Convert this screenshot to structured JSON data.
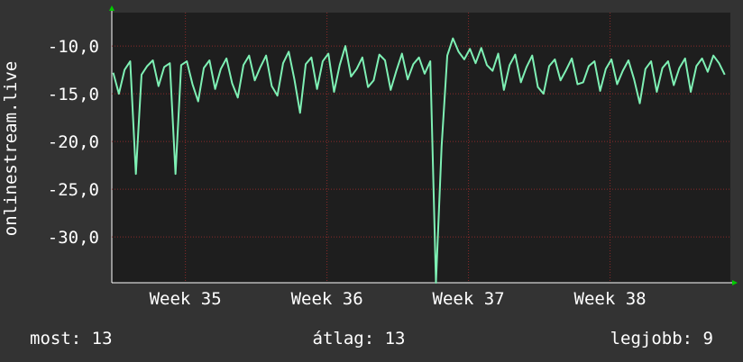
{
  "chart_data": {
    "type": "line",
    "y_label": "onlinestream.live",
    "x": [
      34.49,
      34.53,
      34.57,
      34.61,
      34.65,
      34.69,
      34.73,
      34.77,
      34.81,
      34.85,
      34.89,
      34.93,
      34.97,
      35.01,
      35.05,
      35.09,
      35.13,
      35.17,
      35.21,
      35.25,
      35.29,
      35.33,
      35.37,
      35.41,
      35.45,
      35.49,
      35.53,
      35.57,
      35.61,
      35.65,
      35.69,
      35.73,
      35.77,
      35.81,
      35.85,
      35.89,
      35.93,
      35.97,
      36.01,
      36.05,
      36.09,
      36.13,
      36.17,
      36.21,
      36.25,
      36.29,
      36.33,
      36.37,
      36.41,
      36.45,
      36.49,
      36.53,
      36.57,
      36.61,
      36.65,
      36.69,
      36.73,
      36.77,
      36.81,
      36.85,
      36.89,
      36.93,
      36.97,
      37.01,
      37.05,
      37.09,
      37.13,
      37.17,
      37.21,
      37.25,
      37.29,
      37.33,
      37.37,
      37.41,
      37.45,
      37.49,
      37.53,
      37.57,
      37.61,
      37.65,
      37.69,
      37.73,
      37.77,
      37.81,
      37.85,
      37.89,
      37.93,
      37.97,
      38.01,
      38.05,
      38.09,
      38.13,
      38.17,
      38.21,
      38.25,
      38.29,
      38.33,
      38.37,
      38.41,
      38.45,
      38.49,
      38.53,
      38.57,
      38.61,
      38.65,
      38.69,
      38.73,
      38.77,
      38.81
    ],
    "series": [
      {
        "color": "#7ef0b4",
        "values": [
          -12.8,
          -15.0,
          -12.5,
          -11.6,
          -23.4,
          -13.0,
          -12.1,
          -11.5,
          -14.2,
          -12.2,
          -11.8,
          -23.4,
          -12.0,
          -11.6,
          -14.0,
          -15.8,
          -12.3,
          -11.5,
          -14.5,
          -12.4,
          -11.3,
          -13.9,
          -15.4,
          -12.0,
          -11.0,
          -13.6,
          -12.2,
          -11.0,
          -14.2,
          -15.2,
          -11.8,
          -10.6,
          -13.5,
          -17.0,
          -11.9,
          -11.2,
          -14.5,
          -11.6,
          -10.8,
          -14.8,
          -12.0,
          -10.0,
          -13.2,
          -12.4,
          -11.2,
          -14.3,
          -13.6,
          -10.9,
          -11.5,
          -14.6,
          -12.6,
          -10.8,
          -13.5,
          -11.9,
          -11.2,
          -12.9,
          -11.6,
          -34.8,
          -20.5,
          -11.0,
          -9.2,
          -10.6,
          -11.4,
          -10.3,
          -11.8,
          -10.2,
          -12.0,
          -12.6,
          -10.8,
          -14.6,
          -12.0,
          -10.9,
          -13.8,
          -12.2,
          -11.0,
          -14.3,
          -15.0,
          -12.1,
          -11.4,
          -13.6,
          -12.5,
          -11.3,
          -14.0,
          -13.8,
          -12.1,
          -11.6,
          -14.7,
          -12.4,
          -11.4,
          -14.0,
          -12.6,
          -11.5,
          -13.5,
          -16.0,
          -12.4,
          -11.6,
          -14.8,
          -12.3,
          -11.6,
          -14.1,
          -12.3,
          -11.3,
          -14.8,
          -12.1,
          -11.3,
          -12.7,
          -11.0,
          -11.8,
          -13.0
        ]
      }
    ],
    "xlim": [
      34.48,
      38.85
    ],
    "xticks": [
      {
        "value": 35,
        "label": "Week 35"
      },
      {
        "value": 36,
        "label": "Week 36"
      },
      {
        "value": 37,
        "label": "Week 37"
      },
      {
        "value": 38,
        "label": "Week 38"
      }
    ],
    "ylim": [
      -34.8,
      -6.5
    ],
    "yticks": [
      {
        "value": -30,
        "label": "-30,0"
      },
      {
        "value": -25,
        "label": "-25,0"
      },
      {
        "value": -20,
        "label": "-20,0"
      },
      {
        "value": -15,
        "label": "-15,0"
      },
      {
        "value": -10,
        "label": "-10,0"
      }
    ],
    "grid": true,
    "stats": [
      "most: 13",
      "átlag: 13",
      "legjobb: 9"
    ]
  }
}
